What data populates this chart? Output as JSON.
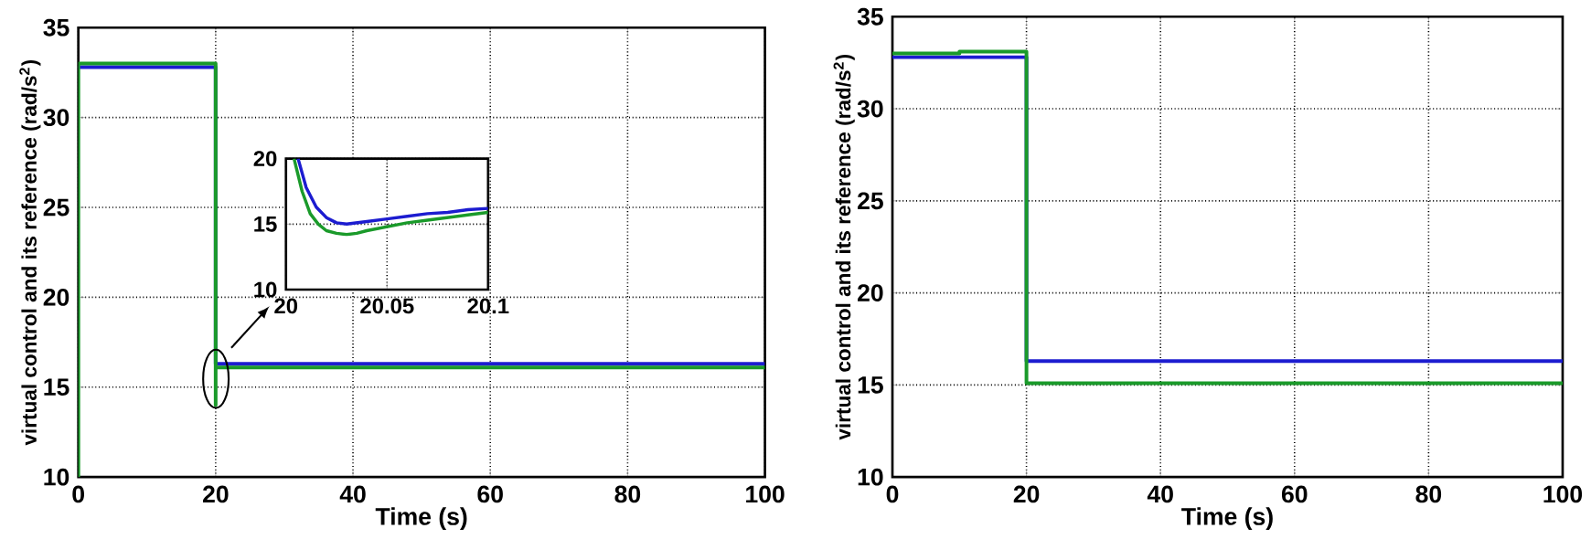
{
  "chart_data": [
    {
      "type": "line",
      "xlabel": "Time (s)",
      "ylabel": "virtual control and its reference (rad/s$^{2}$)",
      "xlim": [
        0,
        100
      ],
      "ylim": [
        10,
        35
      ],
      "xticks": [
        0,
        20,
        40,
        60,
        80,
        100
      ],
      "yticks": [
        10,
        15,
        20,
        25,
        30,
        35
      ],
      "grid": true,
      "series": [
        {
          "color": "#1c1cd0",
          "x": [
            0,
            20,
            20,
            100
          ],
          "values": [
            32.8,
            32.8,
            16.3,
            16.3
          ]
        },
        {
          "color": "#1a9a2a",
          "x": [
            0,
            0,
            20,
            20,
            20,
            100
          ],
          "values": [
            10,
            33,
            33,
            14,
            16.1,
            16.1
          ]
        }
      ]
    },
    {
      "type": "line",
      "xlim": [
        20,
        20.1
      ],
      "ylim": [
        10,
        20
      ],
      "xticks": [
        20,
        20.05,
        20.1
      ],
      "yticks": [
        10,
        15,
        20
      ],
      "grid": true,
      "series": [
        {
          "color": "#1c1cd0",
          "x": [
            20.006,
            20.01,
            20.015,
            20.02,
            20.025,
            20.03,
            20.04,
            20.05,
            20.06,
            20.07,
            20.08,
            20.09,
            20.1
          ],
          "values": [
            20,
            17.8,
            16.3,
            15.5,
            15.1,
            15,
            15.2,
            15.4,
            15.6,
            15.8,
            15.9,
            16.1,
            16.2
          ]
        },
        {
          "color": "#1a9a2a",
          "x": [
            20.004,
            20.008,
            20.012,
            20.016,
            20.02,
            20.025,
            20.03,
            20.035,
            20.04,
            20.05,
            20.06,
            20.07,
            20.08,
            20.09,
            20.1
          ],
          "values": [
            20,
            17.5,
            15.8,
            15,
            14.5,
            14.3,
            14.2,
            14.3,
            14.5,
            14.8,
            15.1,
            15.3,
            15.5,
            15.7,
            15.9
          ]
        }
      ]
    },
    {
      "type": "line",
      "xlabel": "Time (s)",
      "ylabel": "virtual control and its reference (rad/s$^{2}$)",
      "xlim": [
        0,
        100
      ],
      "ylim": [
        10,
        35
      ],
      "xticks": [
        0,
        20,
        40,
        60,
        80,
        100
      ],
      "yticks": [
        10,
        15,
        20,
        25,
        30,
        35
      ],
      "grid": true,
      "series": [
        {
          "color": "#1c1cd0",
          "x": [
            0,
            20,
            20,
            100
          ],
          "values": [
            32.8,
            32.8,
            16.3,
            16.3
          ]
        },
        {
          "color": "#1a9a2a",
          "x": [
            0,
            10,
            10,
            20,
            20,
            100
          ],
          "values": [
            33,
            33,
            33.1,
            33.1,
            15.1,
            15.1
          ]
        }
      ]
    }
  ]
}
